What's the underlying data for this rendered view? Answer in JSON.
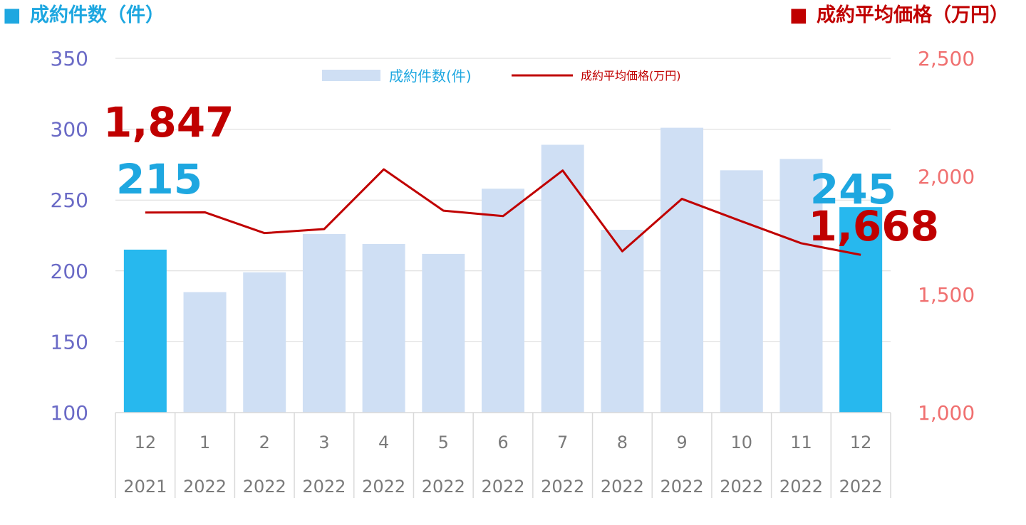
{
  "colors": {
    "left_header": "#1ea7e0",
    "right_header": "#c00000",
    "left_axis": "#6a6ac6",
    "right_axis": "#f07070",
    "bar_highlight": "#27b8ee",
    "bar_normal": "#cfdff4",
    "line": "#c00000",
    "grid": "#d9d9d9",
    "tick_text": "#7a7a7a",
    "count_label": "#1ea7e0",
    "price_label": "#c00000"
  },
  "headers": {
    "left_marker": "■",
    "left": "成約件数（件）",
    "right_marker": "■",
    "right": "成約平均価格（万円）"
  },
  "chart_data": {
    "type": "bar",
    "categories": [
      {
        "month": "12",
        "year": "2021"
      },
      {
        "month": "1",
        "year": "2022"
      },
      {
        "month": "2",
        "year": "2022"
      },
      {
        "month": "3",
        "year": "2022"
      },
      {
        "month": "4",
        "year": "2022"
      },
      {
        "month": "5",
        "year": "2022"
      },
      {
        "month": "6",
        "year": "2022"
      },
      {
        "month": "7",
        "year": "2022"
      },
      {
        "month": "8",
        "year": "2022"
      },
      {
        "month": "9",
        "year": "2022"
      },
      {
        "month": "10",
        "year": "2022"
      },
      {
        "month": "11",
        "year": "2022"
      },
      {
        "month": "12",
        "year": "2022"
      }
    ],
    "series": [
      {
        "name": "成約件数(件)",
        "type": "bar",
        "axis": "left",
        "values": [
          215,
          185,
          199,
          226,
          219,
          212,
          258,
          289,
          229,
          301,
          271,
          279,
          245
        ],
        "highlight": [
          true,
          false,
          false,
          false,
          false,
          false,
          false,
          false,
          false,
          false,
          false,
          false,
          true
        ]
      },
      {
        "name": "成約平均価格(万円)",
        "type": "line",
        "axis": "right",
        "values": [
          1847,
          1848,
          1760,
          1777,
          2030,
          1855,
          1832,
          2025,
          1683,
          1905,
          1810,
          1717,
          1668
        ]
      }
    ],
    "left_axis": {
      "min": 100,
      "max": 350,
      "ticks": [
        "100",
        "150",
        "200",
        "250",
        "300",
        "350"
      ]
    },
    "right_axis": {
      "min": 1000,
      "max": 2500,
      "ticks": [
        "1,000",
        "1,500",
        "2,000",
        "2,500"
      ]
    },
    "grid": true,
    "legend": {
      "placement": "top-center"
    },
    "annotations": [
      {
        "text": "1,847",
        "series": "price",
        "index": 0,
        "anchor": "start"
      },
      {
        "text": "215",
        "series": "count",
        "index": 0,
        "anchor": "start"
      },
      {
        "text": "245",
        "series": "count",
        "index": 12,
        "anchor": "end"
      },
      {
        "text": "1,668",
        "series": "price",
        "index": 12,
        "anchor": "end"
      }
    ]
  }
}
